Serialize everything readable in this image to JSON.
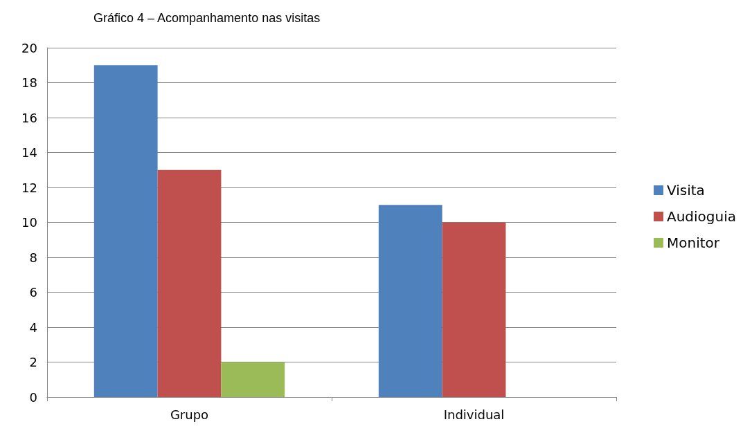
{
  "chart_data": {
    "type": "bar",
    "title": "Gráfico 4 – Acompanhamento nas visitas",
    "categories": [
      "Grupo",
      "Individual"
    ],
    "series": [
      {
        "name": "Visita",
        "color": "#4f81bd",
        "values": [
          19,
          11
        ]
      },
      {
        "name": "Audioguia",
        "color": "#c0504d",
        "values": [
          13,
          10
        ]
      },
      {
        "name": "Monitor",
        "color": "#9bbb59",
        "values": [
          2,
          0
        ]
      }
    ],
    "ylim": [
      0,
      20
    ],
    "yticks": [
      0,
      2,
      4,
      6,
      8,
      10,
      12,
      14,
      16,
      18,
      20
    ],
    "grid": "y",
    "legend": "right"
  }
}
